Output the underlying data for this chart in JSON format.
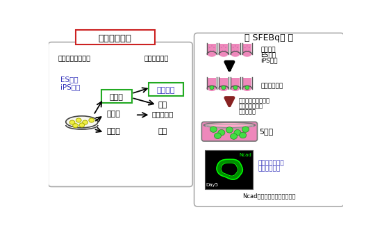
{
  "title_left": "試験管内分化",
  "title_right": "－ SFEBq法 －",
  "left_header1": "《多能性幹細胞》",
  "left_header2": "《分化細胞》",
  "left_es": "ES細胞",
  "left_ips": "iPS細胞",
  "left_germ1": "外胚葉",
  "left_germ2": "中胚葉",
  "left_germ3": "内胚葉",
  "right_neuro": "神経細胞",
  "right_diff1": "表皮",
  "right_diff2": "心臓・筋肉",
  "right_diff3": "内臓",
  "right_label1": "分散した",
  "right_label1b": "ES細胞",
  "right_label1c": "iPS細胞",
  "right_label2": "凝集塗を形成",
  "right_label3a": "血清や増殖因子等を",
  "right_label3b": "含まない培養液",
  "right_label3c": "で浮遊培養",
  "right_label4": "5日後",
  "right_label5a": "神経前駆細胞へ",
  "right_label5b": "高効率に分化",
  "right_label6": "Ncad＝神経前駆細胞マーカー",
  "ncad_label": "Ncad",
  "day5_label": "Day5",
  "bg_color": "#ffffff",
  "title_left_border": "#cc2222",
  "blue_text": "#3333bb",
  "green_box": "#22aa22",
  "pink_fill": "#ee88bb",
  "pink_light": "#ffaacc",
  "green_sphere": "#44dd44",
  "arrow_black": "#111111",
  "arrow_dark_red": "#882222",
  "gray_line": "#666666"
}
